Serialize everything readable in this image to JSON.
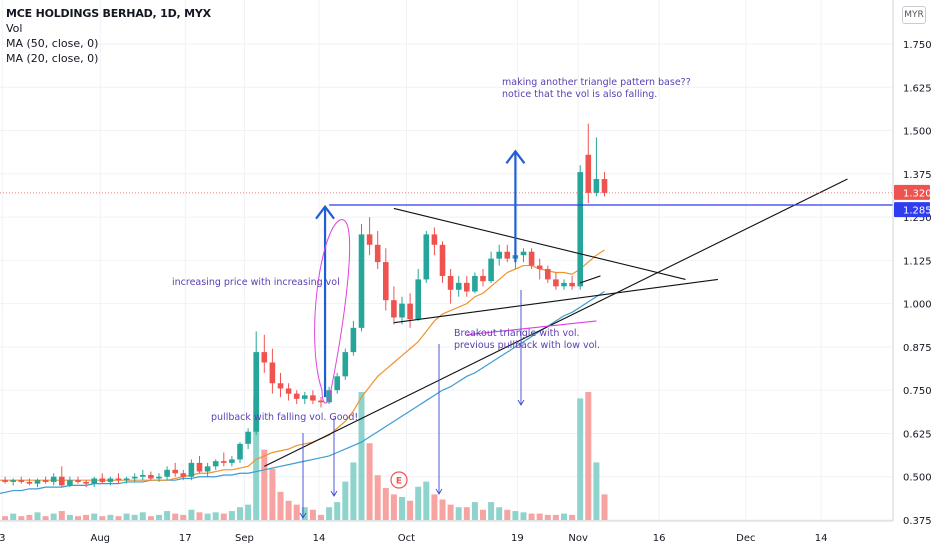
{
  "header": {
    "title": "MCE HOLDINGS BERHAD, 1D, MYX",
    "indicators": [
      "Vol",
      "MA (50, close, 0)",
      "MA (20, close, 0)"
    ],
    "currency": "MYR"
  },
  "colors": {
    "up": "#26a69a",
    "down": "#ef5350",
    "vol_up": "#8fd4cc",
    "vol_down": "#f6a3a1",
    "ma50": "#3d9bd3",
    "ma20": "#f0922d",
    "annotation": "#5b3fb3",
    "arrow_blue": "#1f5ed6",
    "hline": "#2f3cf0",
    "magenta": "#e040e0",
    "last_price_bg": "#ef5350",
    "level_bg": "#2f3cf0"
  },
  "annotations": {
    "note1_line1": "making another triangle pattern base??",
    "note1_line2": "notice that the vol is also falling.",
    "note2": "increasing price with increasing vol",
    "note3_line1": "Breakout triangle with vol.",
    "note3_line2": "previous pullback with low vol.",
    "note4": "pullback with falling vol. Good!",
    "earnings_marker": "E"
  },
  "chart_data": {
    "type": "candlestick",
    "x_tick_labels": [
      "3",
      "Aug",
      "17",
      "Sep",
      "14",
      "Oct",
      "19",
      "Nov",
      "16",
      "Dec",
      "14"
    ],
    "y_tick_labels": [
      "1.750",
      "1.625",
      "1.500",
      "1.375",
      "1.250",
      "1.125",
      "1.000",
      "0.875",
      "0.750",
      "0.625",
      "0.500",
      "0.375"
    ],
    "ylim": [
      0.375,
      1.75
    ],
    "price_labels": {
      "last": "1.320",
      "level": "1.285"
    },
    "candles": [
      {
        "o": 0.485,
        "h": 0.5,
        "l": 0.48,
        "c": 0.49
      },
      {
        "o": 0.49,
        "h": 0.5,
        "l": 0.48,
        "c": 0.485
      },
      {
        "o": 0.485,
        "h": 0.495,
        "l": 0.475,
        "c": 0.49
      },
      {
        "o": 0.49,
        "h": 0.5,
        "l": 0.48,
        "c": 0.485
      },
      {
        "o": 0.485,
        "h": 0.495,
        "l": 0.475,
        "c": 0.48
      },
      {
        "o": 0.48,
        "h": 0.495,
        "l": 0.47,
        "c": 0.49
      },
      {
        "o": 0.49,
        "h": 0.5,
        "l": 0.48,
        "c": 0.485
      },
      {
        "o": 0.485,
        "h": 0.51,
        "l": 0.475,
        "c": 0.5
      },
      {
        "o": 0.5,
        "h": 0.53,
        "l": 0.47,
        "c": 0.475
      },
      {
        "o": 0.475,
        "h": 0.5,
        "l": 0.47,
        "c": 0.49
      },
      {
        "o": 0.49,
        "h": 0.5,
        "l": 0.48,
        "c": 0.485
      },
      {
        "o": 0.485,
        "h": 0.49,
        "l": 0.47,
        "c": 0.48
      },
      {
        "o": 0.48,
        "h": 0.5,
        "l": 0.47,
        "c": 0.495
      },
      {
        "o": 0.495,
        "h": 0.51,
        "l": 0.48,
        "c": 0.485
      },
      {
        "o": 0.485,
        "h": 0.5,
        "l": 0.475,
        "c": 0.495
      },
      {
        "o": 0.495,
        "h": 0.51,
        "l": 0.48,
        "c": 0.49
      },
      {
        "o": 0.49,
        "h": 0.5,
        "l": 0.48,
        "c": 0.495
      },
      {
        "o": 0.495,
        "h": 0.51,
        "l": 0.485,
        "c": 0.5
      },
      {
        "o": 0.5,
        "h": 0.52,
        "l": 0.49,
        "c": 0.505
      },
      {
        "o": 0.505,
        "h": 0.515,
        "l": 0.49,
        "c": 0.495
      },
      {
        "o": 0.495,
        "h": 0.51,
        "l": 0.485,
        "c": 0.5
      },
      {
        "o": 0.5,
        "h": 0.53,
        "l": 0.49,
        "c": 0.52
      },
      {
        "o": 0.52,
        "h": 0.54,
        "l": 0.5,
        "c": 0.51
      },
      {
        "o": 0.51,
        "h": 0.52,
        "l": 0.49,
        "c": 0.5
      },
      {
        "o": 0.5,
        "h": 0.55,
        "l": 0.49,
        "c": 0.54
      },
      {
        "o": 0.54,
        "h": 0.56,
        "l": 0.51,
        "c": 0.515
      },
      {
        "o": 0.515,
        "h": 0.54,
        "l": 0.5,
        "c": 0.53
      },
      {
        "o": 0.53,
        "h": 0.55,
        "l": 0.52,
        "c": 0.545
      },
      {
        "o": 0.545,
        "h": 0.57,
        "l": 0.53,
        "c": 0.54
      },
      {
        "o": 0.54,
        "h": 0.56,
        "l": 0.53,
        "c": 0.55
      },
      {
        "o": 0.55,
        "h": 0.6,
        "l": 0.54,
        "c": 0.595
      },
      {
        "o": 0.595,
        "h": 0.64,
        "l": 0.58,
        "c": 0.63
      },
      {
        "o": 0.63,
        "h": 0.92,
        "l": 0.62,
        "c": 0.86
      },
      {
        "o": 0.86,
        "h": 0.91,
        "l": 0.8,
        "c": 0.83
      },
      {
        "o": 0.83,
        "h": 0.87,
        "l": 0.74,
        "c": 0.77
      },
      {
        "o": 0.77,
        "h": 0.8,
        "l": 0.73,
        "c": 0.755
      },
      {
        "o": 0.755,
        "h": 0.77,
        "l": 0.72,
        "c": 0.74
      },
      {
        "o": 0.74,
        "h": 0.75,
        "l": 0.71,
        "c": 0.725
      },
      {
        "o": 0.725,
        "h": 0.745,
        "l": 0.71,
        "c": 0.735
      },
      {
        "o": 0.735,
        "h": 0.75,
        "l": 0.71,
        "c": 0.72
      },
      {
        "o": 0.72,
        "h": 0.73,
        "l": 0.7,
        "c": 0.715
      },
      {
        "o": 0.715,
        "h": 0.76,
        "l": 0.71,
        "c": 0.75
      },
      {
        "o": 0.75,
        "h": 0.8,
        "l": 0.74,
        "c": 0.79
      },
      {
        "o": 0.79,
        "h": 0.87,
        "l": 0.78,
        "c": 0.86
      },
      {
        "o": 0.86,
        "h": 0.95,
        "l": 0.85,
        "c": 0.93
      },
      {
        "o": 0.93,
        "h": 1.23,
        "l": 0.92,
        "c": 1.2
      },
      {
        "o": 1.2,
        "h": 1.25,
        "l": 1.14,
        "c": 1.17
      },
      {
        "o": 1.17,
        "h": 1.21,
        "l": 1.1,
        "c": 1.12
      },
      {
        "o": 1.12,
        "h": 1.16,
        "l": 0.98,
        "c": 1.01
      },
      {
        "o": 1.01,
        "h": 1.05,
        "l": 0.94,
        "c": 0.96
      },
      {
        "o": 0.96,
        "h": 1.02,
        "l": 0.94,
        "c": 1.0
      },
      {
        "o": 1.0,
        "h": 1.03,
        "l": 0.93,
        "c": 0.955
      },
      {
        "o": 0.955,
        "h": 1.1,
        "l": 0.95,
        "c": 1.07
      },
      {
        "o": 1.07,
        "h": 1.21,
        "l": 1.06,
        "c": 1.2
      },
      {
        "o": 1.2,
        "h": 1.22,
        "l": 1.14,
        "c": 1.17
      },
      {
        "o": 1.17,
        "h": 1.18,
        "l": 1.06,
        "c": 1.08
      },
      {
        "o": 1.08,
        "h": 1.1,
        "l": 1.0,
        "c": 1.04
      },
      {
        "o": 1.04,
        "h": 1.08,
        "l": 1.02,
        "c": 1.06
      },
      {
        "o": 1.06,
        "h": 1.08,
        "l": 1.02,
        "c": 1.035
      },
      {
        "o": 1.035,
        "h": 1.09,
        "l": 1.03,
        "c": 1.08
      },
      {
        "o": 1.08,
        "h": 1.1,
        "l": 1.05,
        "c": 1.065
      },
      {
        "o": 1.065,
        "h": 1.15,
        "l": 1.06,
        "c": 1.13
      },
      {
        "o": 1.13,
        "h": 1.17,
        "l": 1.11,
        "c": 1.15
      },
      {
        "o": 1.15,
        "h": 1.17,
        "l": 1.12,
        "c": 1.13
      },
      {
        "o": 1.13,
        "h": 1.15,
        "l": 1.1,
        "c": 1.14
      },
      {
        "o": 1.14,
        "h": 1.16,
        "l": 1.12,
        "c": 1.15
      },
      {
        "o": 1.15,
        "h": 1.16,
        "l": 1.1,
        "c": 1.11
      },
      {
        "o": 1.11,
        "h": 1.13,
        "l": 1.07,
        "c": 1.1
      },
      {
        "o": 1.1,
        "h": 1.11,
        "l": 1.06,
        "c": 1.07
      },
      {
        "o": 1.07,
        "h": 1.09,
        "l": 1.04,
        "c": 1.05
      },
      {
        "o": 1.05,
        "h": 1.07,
        "l": 1.04,
        "c": 1.06
      },
      {
        "o": 1.06,
        "h": 1.08,
        "l": 1.04,
        "c": 1.05
      },
      {
        "o": 1.05,
        "h": 1.4,
        "l": 1.04,
        "c": 1.38
      },
      {
        "o": 1.43,
        "h": 1.52,
        "l": 1.29,
        "c": 1.32
      },
      {
        "o": 1.32,
        "h": 1.48,
        "l": 1.31,
        "c": 1.36
      },
      {
        "o": 1.36,
        "h": 1.38,
        "l": 1.31,
        "c": 1.32
      }
    ],
    "volume": [
      0.04,
      0.03,
      0.05,
      0.03,
      0.04,
      0.06,
      0.03,
      0.05,
      0.07,
      0.04,
      0.03,
      0.04,
      0.05,
      0.03,
      0.04,
      0.03,
      0.05,
      0.04,
      0.06,
      0.03,
      0.04,
      0.07,
      0.05,
      0.04,
      0.08,
      0.06,
      0.05,
      0.06,
      0.05,
      0.07,
      0.1,
      0.12,
      0.95,
      0.55,
      0.4,
      0.22,
      0.15,
      0.12,
      0.1,
      0.08,
      0.04,
      0.1,
      0.14,
      0.3,
      0.45,
      1.0,
      0.6,
      0.35,
      0.25,
      0.2,
      0.18,
      0.15,
      0.26,
      0.3,
      0.2,
      0.16,
      0.12,
      0.1,
      0.1,
      0.14,
      0.08,
      0.14,
      0.1,
      0.08,
      0.07,
      0.06,
      0.05,
      0.05,
      0.04,
      0.04,
      0.05,
      0.04,
      0.95,
      1.0,
      0.45,
      0.2
    ],
    "ma20": [
      0.49,
      0.49,
      0.49,
      0.49,
      0.49,
      0.49,
      0.49,
      0.49,
      0.49,
      0.49,
      0.49,
      0.49,
      0.49,
      0.49,
      0.49,
      0.49,
      0.49,
      0.49,
      0.49,
      0.49,
      0.49,
      0.49,
      0.495,
      0.5,
      0.505,
      0.51,
      0.51,
      0.515,
      0.52,
      0.52,
      0.525,
      0.53,
      0.55,
      0.56,
      0.57,
      0.575,
      0.58,
      0.59,
      0.595,
      0.6,
      0.61,
      0.62,
      0.64,
      0.66,
      0.69,
      0.73,
      0.76,
      0.79,
      0.81,
      0.83,
      0.85,
      0.87,
      0.89,
      0.92,
      0.95,
      0.97,
      0.98,
      0.99,
      1.0,
      1.02,
      1.03,
      1.05,
      1.07,
      1.09,
      1.1,
      1.11,
      1.11,
      1.1,
      1.095,
      1.09,
      1.09,
      1.085,
      1.1,
      1.12,
      1.14,
      1.155
    ],
    "ma50": [
      0.45,
      0.455,
      0.46,
      0.46,
      0.465,
      0.465,
      0.47,
      0.47,
      0.47,
      0.475,
      0.475,
      0.475,
      0.48,
      0.48,
      0.48,
      0.48,
      0.485,
      0.485,
      0.485,
      0.49,
      0.49,
      0.49,
      0.49,
      0.495,
      0.495,
      0.5,
      0.5,
      0.5,
      0.505,
      0.505,
      0.51,
      0.51,
      0.515,
      0.52,
      0.525,
      0.53,
      0.535,
      0.54,
      0.545,
      0.55,
      0.555,
      0.56,
      0.57,
      0.58,
      0.59,
      0.6,
      0.615,
      0.63,
      0.645,
      0.66,
      0.675,
      0.69,
      0.705,
      0.72,
      0.735,
      0.75,
      0.76,
      0.775,
      0.79,
      0.8,
      0.815,
      0.83,
      0.845,
      0.86,
      0.875,
      0.89,
      0.905,
      0.92,
      0.935,
      0.95,
      0.965,
      0.975,
      0.99,
      1.005,
      1.02,
      1.035
    ],
    "trend_lines": [
      {
        "name": "triangle-top",
        "p1": [
          49,
          1.275
        ],
        "p2": [
          85,
          1.07
        ]
      },
      {
        "name": "triangle-base",
        "p1": [
          49,
          0.945
        ],
        "p2": [
          89,
          1.07
        ]
      },
      {
        "name": "rising-support",
        "p1": [
          33,
          0.53
        ],
        "p2": [
          105,
          1.36
        ]
      },
      {
        "name": "pullback-low",
        "p1": [
          58,
          0.91
        ],
        "p2": [
          74,
          0.95
        ]
      }
    ],
    "horizontal_levels": [
      1.285,
      1.32
    ]
  }
}
